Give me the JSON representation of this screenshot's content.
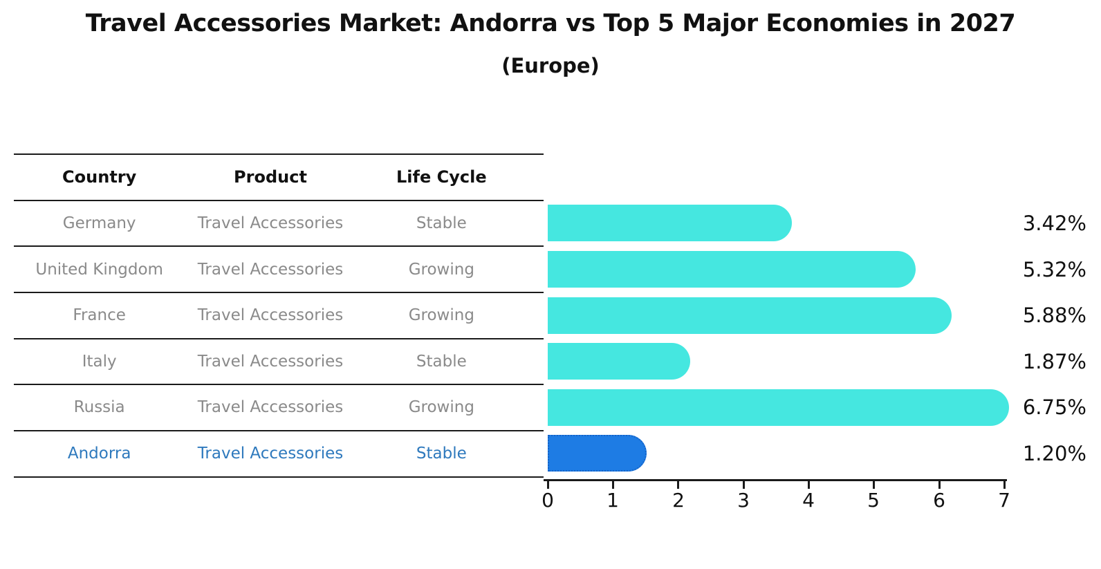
{
  "page": {
    "title": "Travel Accessories Market: Andorra vs Top 5 Major Economies in 2027",
    "subtitle": "(Europe)"
  },
  "table": {
    "headers": {
      "country": "Country",
      "product": "Product",
      "life_cycle": "Life Cycle"
    },
    "rows": [
      {
        "country": "Germany",
        "product": "Travel Accessories",
        "life_cycle": "Stable",
        "highlight": false
      },
      {
        "country": "United Kingdom",
        "product": "Travel Accessories",
        "life_cycle": "Growing",
        "highlight": false
      },
      {
        "country": "France",
        "product": "Travel Accessories",
        "life_cycle": "Growing",
        "highlight": false
      },
      {
        "country": "Italy",
        "product": "Travel Accessories",
        "life_cycle": "Stable",
        "highlight": false
      },
      {
        "country": "Russia",
        "product": "Travel Accessories",
        "life_cycle": "Growing",
        "highlight": false
      },
      {
        "country": "Andorra",
        "product": "Travel Accessories",
        "life_cycle": "Stable",
        "highlight": true
      }
    ]
  },
  "chart_data": {
    "type": "bar",
    "orientation": "horizontal",
    "title": "Travel Accessories Market: Andorra vs Top 5 Major Economies in 2027",
    "subtitle": "(Europe)",
    "categories": [
      "Germany",
      "United Kingdom",
      "France",
      "Italy",
      "Russia",
      "Andorra"
    ],
    "values": [
      3.42,
      5.32,
      5.88,
      1.87,
      6.75,
      1.2
    ],
    "value_labels": [
      "3.42%",
      "5.32%",
      "5.88%",
      "1.87%",
      "6.75%",
      "1.20%"
    ],
    "xlabel": "",
    "ylabel": "",
    "xlim": [
      0,
      7
    ],
    "x_ticks": [
      0,
      1,
      2,
      3,
      4,
      5,
      6,
      7
    ],
    "grid": false,
    "legend": "none",
    "highlight_index": 5
  },
  "colors": {
    "bar_cyan": "#45e7e0",
    "bar_blue": "#1e7ce4",
    "bar_blue_dotted_border": "#1563c8",
    "highlight_text": "#2e79bd",
    "row_text": "#8a8a8a",
    "header_text": "#111111",
    "axis": "#1a1a1a"
  }
}
